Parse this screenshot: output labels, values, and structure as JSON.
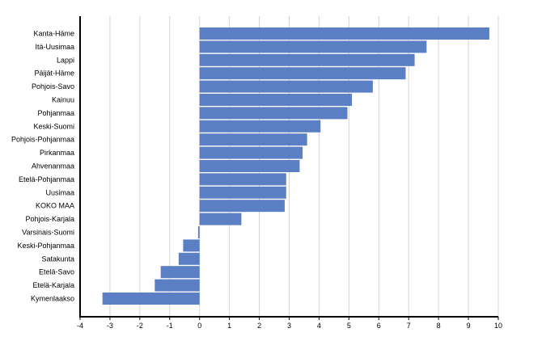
{
  "chart_data": {
    "type": "bar",
    "orientation": "horizontal",
    "categories": [
      "Kanta-Häme",
      "Itä-Uusimaa",
      "Lappi",
      "Päijät-Häme",
      "Pohjois-Savo",
      "Kainuu",
      "Pohjanmaa",
      "Keski-Suomi",
      "Pohjois-Pohjanmaa",
      "Pirkanmaa",
      "Ahvenanmaa",
      "Etelä-Pohjanmaa",
      "Uusimaa",
      "KOKO MAA",
      "Pohjois-Karjala",
      "Varsinais-Suomi",
      "Keski-Pohjanmaa",
      "Satakunta",
      "Etelä-Savo",
      "Etelä-Karjala",
      "Kymenlaakso"
    ],
    "values": [
      9.7,
      7.6,
      7.2,
      6.9,
      5.8,
      5.1,
      4.95,
      4.05,
      3.6,
      3.45,
      3.35,
      2.9,
      2.9,
      2.85,
      1.4,
      -0.05,
      -0.55,
      -0.7,
      -1.3,
      -1.5,
      -3.25
    ],
    "xlim": [
      -4,
      10
    ],
    "xticks": [
      "-4",
      "-3",
      "-2",
      "-1",
      "0",
      "1",
      "2",
      "3",
      "4",
      "5",
      "6",
      "7",
      "8",
      "9",
      "10"
    ],
    "grid": true,
    "bar_color": "#5b7fc4",
    "title": "",
    "xlabel": "",
    "ylabel": ""
  }
}
